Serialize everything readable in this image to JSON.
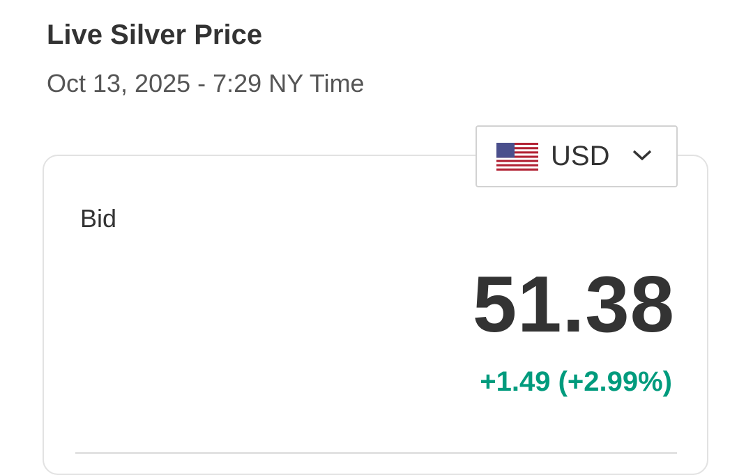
{
  "header": {
    "title": "Live Silver Price",
    "timestamp": "Oct 13, 2025 - 7:29 NY Time"
  },
  "currency_selector": {
    "selected": "USD",
    "flag_icon": "us-flag-icon",
    "chevron_icon": "chevron-down-icon"
  },
  "quote": {
    "label": "Bid",
    "price": "51.38",
    "change": "+1.49 (+2.99%)",
    "change_color": "#009b7d"
  }
}
